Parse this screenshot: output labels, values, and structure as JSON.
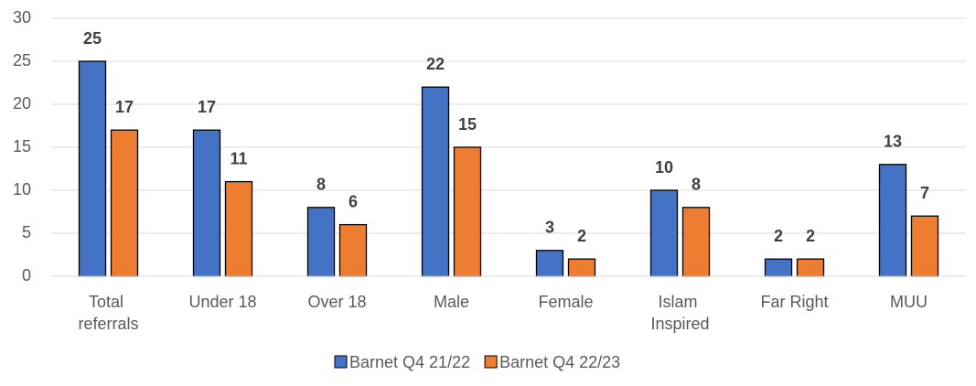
{
  "chart_data": {
    "type": "bar",
    "categories": [
      "Total referrals",
      "Under 18",
      "Over 18",
      "Male",
      "Female",
      "Islam Inspired",
      "Far Right",
      "MUU"
    ],
    "series": [
      {
        "name": "Barnet Q4 21/22",
        "color": "#4472c4",
        "values": [
          25,
          17,
          8,
          22,
          3,
          10,
          2,
          13
        ]
      },
      {
        "name": "Barnet Q4 22/23",
        "color": "#ed7d31",
        "values": [
          17,
          11,
          6,
          15,
          2,
          8,
          2,
          7
        ]
      }
    ],
    "ylim": [
      0,
      30
    ],
    "yticks": [
      0,
      5,
      10,
      15,
      20,
      25,
      30
    ],
    "grid": true,
    "legend": "bottom"
  }
}
